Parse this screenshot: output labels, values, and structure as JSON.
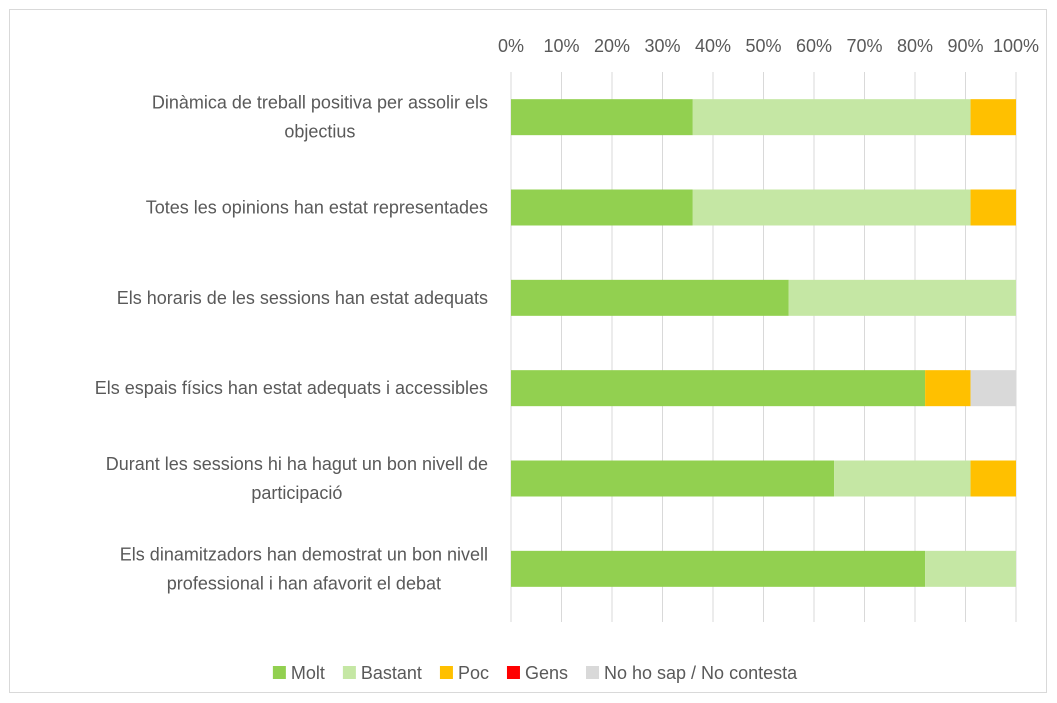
{
  "chart_data": {
    "type": "bar",
    "orientation": "horizontal",
    "stacked": "percent",
    "x_ticks": [
      "0%",
      "10%",
      "20%",
      "30%",
      "40%",
      "50%",
      "60%",
      "70%",
      "80%",
      "90%",
      "100%"
    ],
    "xlim": [
      0,
      100
    ],
    "grid": true,
    "legend_position": "bottom",
    "categories": [
      [
        "Dinàmica de treball positiva per assolir els",
        "objectius"
      ],
      [
        "Totes les opinions han estat representades"
      ],
      [
        "Els horaris de les sessions han estat adequats"
      ],
      [
        "Els espais físics han estat adequats i accessibles"
      ],
      [
        "Durant les sessions hi ha hagut un bon nivell de",
        "participació"
      ],
      [
        "Els dinamitzadors han demostrat un bon nivell",
        "professional i han afavorit el debat"
      ]
    ],
    "series": [
      {
        "name": "Molt",
        "color": "#92d050",
        "values": [
          36,
          36,
          55,
          82,
          64,
          82
        ]
      },
      {
        "name": "Bastant",
        "color": "#c5e7a4",
        "values": [
          55,
          55,
          45,
          0,
          27,
          18
        ]
      },
      {
        "name": "Poc",
        "color": "#ffc000",
        "values": [
          9,
          9,
          0,
          9,
          9,
          0
        ]
      },
      {
        "name": "Gens",
        "color": "#ff0000",
        "values": [
          0,
          0,
          0,
          0,
          0,
          0
        ]
      },
      {
        "name": "No ho sap / No contesta",
        "color": "#d9d9d9",
        "values": [
          0,
          0,
          0,
          9,
          0,
          0
        ]
      }
    ]
  }
}
